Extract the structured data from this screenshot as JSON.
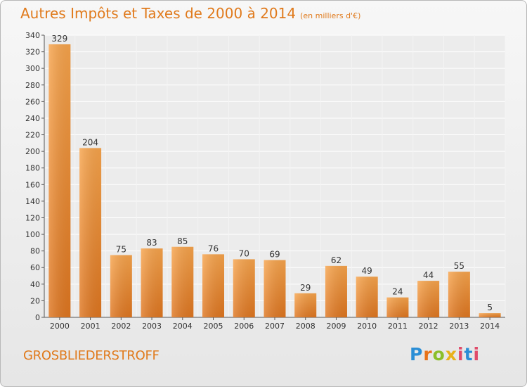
{
  "header": {
    "title": "Autres Impôts et Taxes de 2000 à 2014",
    "subtitle": "(en milliers d'€)"
  },
  "footer": {
    "commune": "GROSBLIEDERSTROFF",
    "logo": "Proxiti"
  },
  "chart_data": {
    "type": "bar",
    "categories": [
      "2000",
      "2001",
      "2002",
      "2003",
      "2004",
      "2005",
      "2006",
      "2007",
      "2008",
      "2009",
      "2010",
      "2011",
      "2012",
      "2013",
      "2014"
    ],
    "values": [
      329,
      204,
      75,
      83,
      85,
      76,
      70,
      69,
      29,
      62,
      49,
      24,
      44,
      55,
      5
    ],
    "title": "Autres Impôts et Taxes de 2000 à 2014",
    "unit": "(en milliers d'€)",
    "ylim": [
      0,
      340
    ],
    "yticks": [
      0,
      20,
      40,
      60,
      80,
      100,
      120,
      140,
      160,
      180,
      200,
      220,
      240,
      260,
      280,
      300,
      320,
      340
    ],
    "grid": true,
    "bar_color": "#f0922f"
  }
}
